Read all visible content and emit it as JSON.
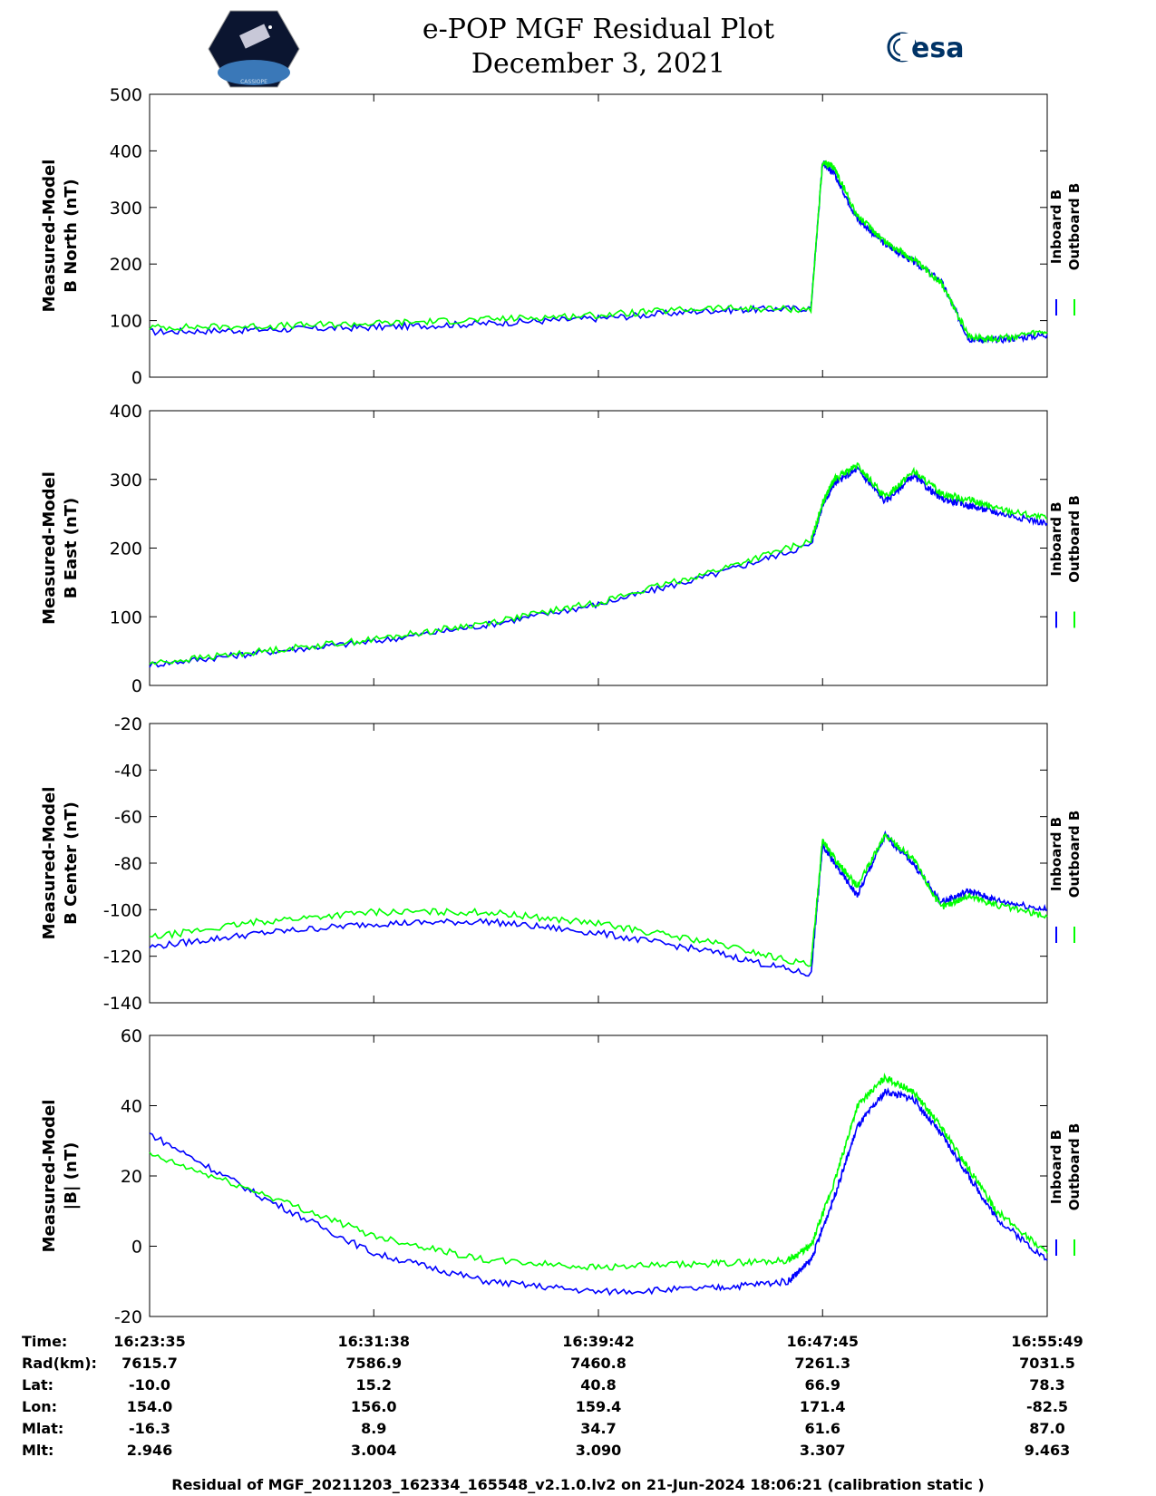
{
  "header": {
    "title": "e-POP MGF Residual Plot",
    "date": "December 3, 2021",
    "logo_left_text": "CASSIOPE",
    "logo_right_text": "esa"
  },
  "colors": {
    "inboard": "#0000ff",
    "outboard": "#00ff00",
    "axis": "#000000"
  },
  "chart_data": [
    {
      "type": "line",
      "ylabel": [
        "Measured-Model",
        "B North (nT)"
      ],
      "ylim": [
        0,
        500
      ],
      "yticks": [
        0,
        100,
        200,
        300,
        400,
        500
      ],
      "legend": [
        "Inboard B",
        "Outboard B"
      ],
      "legend_position": "right",
      "x": [
        "16:23:35",
        "16:27:37",
        "16:31:38",
        "16:35:40",
        "16:39:42",
        "16:43:44",
        "16:47:20",
        "16:47:45",
        "16:48:10",
        "16:49:00",
        "16:50:00",
        "16:51:00",
        "16:52:00",
        "16:53:00",
        "16:54:00",
        "16:55:49"
      ],
      "series": [
        {
          "name": "Inboard B",
          "values": [
            80,
            84,
            88,
            95,
            104,
            118,
            122,
            380,
            360,
            280,
            235,
            205,
            170,
            68,
            66,
            75
          ]
        },
        {
          "name": "Outboard B",
          "values": [
            88,
            90,
            95,
            102,
            110,
            122,
            120,
            380,
            370,
            285,
            240,
            208,
            168,
            72,
            68,
            80
          ]
        }
      ]
    },
    {
      "type": "line",
      "ylabel": [
        "Measured-Model",
        "B East (nT)"
      ],
      "ylim": [
        0,
        400
      ],
      "yticks": [
        0,
        100,
        200,
        300,
        400
      ],
      "legend": [
        "Inboard B",
        "Outboard B"
      ],
      "legend_position": "right",
      "x": [
        "16:23:35",
        "16:27:37",
        "16:31:38",
        "16:35:40",
        "16:39:42",
        "16:43:44",
        "16:47:20",
        "16:47:45",
        "16:48:10",
        "16:49:00",
        "16:50:00",
        "16:51:00",
        "16:52:00",
        "16:53:00",
        "16:54:00",
        "16:55:49"
      ],
      "series": [
        {
          "name": "Inboard B",
          "values": [
            30,
            48,
            64,
            88,
            118,
            160,
            205,
            262,
            294,
            315,
            268,
            305,
            272,
            262,
            252,
            236
          ]
        },
        {
          "name": "Outboard B",
          "values": [
            32,
            50,
            67,
            91,
            121,
            165,
            210,
            266,
            300,
            320,
            274,
            312,
            280,
            270,
            258,
            243
          ]
        }
      ]
    },
    {
      "type": "line",
      "ylabel": [
        "Measured-Model",
        "B Center (nT)"
      ],
      "ylim": [
        -140,
        -20
      ],
      "yticks": [
        -140,
        -120,
        -100,
        -80,
        -60,
        -40,
        -20
      ],
      "legend": [
        "Inboard B",
        "Outboard B"
      ],
      "legend_position": "right",
      "x": [
        "16:23:35",
        "16:27:37",
        "16:31:38",
        "16:35:40",
        "16:39:42",
        "16:43:44",
        "16:47:20",
        "16:47:45",
        "16:48:10",
        "16:49:00",
        "16:50:00",
        "16:51:00",
        "16:52:00",
        "16:53:00",
        "16:54:00",
        "16:55:49"
      ],
      "series": [
        {
          "name": "Inboard B",
          "values": [
            -116,
            -110,
            -106,
            -105,
            -110,
            -118,
            -128,
            -72,
            -80,
            -94,
            -68,
            -80,
            -97,
            -92,
            -96,
            -100
          ]
        },
        {
          "name": "Outboard B",
          "values": [
            -112,
            -105,
            -101,
            -101,
            -106,
            -114,
            -124,
            -70,
            -78,
            -90,
            -68,
            -78,
            -99,
            -94,
            -98,
            -103
          ]
        }
      ]
    },
    {
      "type": "line",
      "ylabel": [
        "Measured-Model",
        "|B| (nT)"
      ],
      "ylim": [
        -20,
        60
      ],
      "yticks": [
        -20,
        0,
        20,
        40,
        60
      ],
      "legend": [
        "Inboard B",
        "Outboard B"
      ],
      "legend_position": "right",
      "x": [
        "16:23:35",
        "16:27:37",
        "16:31:38",
        "16:35:40",
        "16:39:42",
        "16:43:44",
        "16:46:30",
        "16:47:20",
        "16:48:10",
        "16:49:00",
        "16:50:00",
        "16:51:00",
        "16:52:00",
        "16:53:00",
        "16:54:00",
        "16:55:49"
      ],
      "series": [
        {
          "name": "Inboard B",
          "values": [
            32,
            14,
            -2,
            -10,
            -13,
            -12,
            -10,
            -4,
            14,
            34,
            44,
            42,
            32,
            20,
            8,
            -4
          ]
        },
        {
          "name": "Outboard B",
          "values": [
            26,
            15,
            3,
            -4,
            -6,
            -5,
            -4,
            0,
            18,
            40,
            48,
            44,
            34,
            22,
            10,
            -2
          ]
        }
      ]
    }
  ],
  "info_table": {
    "row_labels": [
      "Time:",
      "Rad(km):",
      "Lat:",
      "Lon:",
      "Mlat:",
      "Mlt:"
    ],
    "columns": [
      [
        "16:23:35",
        "7615.7",
        "-10.0",
        "154.0",
        "-16.3",
        "2.946"
      ],
      [
        "16:31:38",
        "7586.9",
        "15.2",
        "156.0",
        "8.9",
        "3.004"
      ],
      [
        "16:39:42",
        "7460.8",
        "40.8",
        "159.4",
        "34.7",
        "3.090"
      ],
      [
        "16:47:45",
        "7261.3",
        "66.9",
        "171.4",
        "61.6",
        "3.307"
      ],
      [
        "16:55:49",
        "7031.5",
        "78.3",
        "-82.5",
        "87.0",
        "9.463"
      ]
    ]
  },
  "footer": "Residual of MGF_20211203_162334_165548_v2.1.0.lv2 on 21-Jun-2024 18:06:21 (calibration static )"
}
